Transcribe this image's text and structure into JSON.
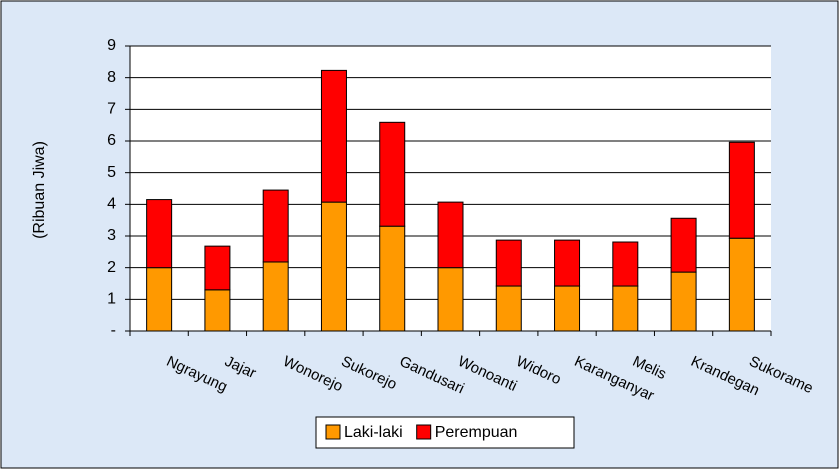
{
  "chart_data": {
    "type": "stacked_bar",
    "y_label": "(Ribuan Jiwa)",
    "categories": [
      "Ngrayung",
      "Jajar",
      "Wonorejo",
      "Sukorejo",
      "Gandusari",
      "Wonoanti",
      "Widoro",
      "Karanganyar",
      "Melis",
      "Krandegan",
      "Sukorame"
    ],
    "series": [
      {
        "name": "Laki-laki",
        "color": "#ff9900",
        "values": [
          2.0,
          1.3,
          2.18,
          4.07,
          3.31,
          2.0,
          1.42,
          1.42,
          1.42,
          1.86,
          2.93
        ]
      },
      {
        "name": "Perempuan",
        "color": "#ff0000",
        "values": [
          2.15,
          1.38,
          2.27,
          4.16,
          3.28,
          2.07,
          1.45,
          1.45,
          1.39,
          1.7,
          3.03
        ]
      }
    ],
    "ylim": [
      0,
      9
    ],
    "yticks": [
      {
        "value": 0,
        "label": "-"
      },
      1,
      2,
      3,
      4,
      5,
      6,
      7,
      8,
      9
    ],
    "grid": true,
    "legend": "bottom"
  }
}
